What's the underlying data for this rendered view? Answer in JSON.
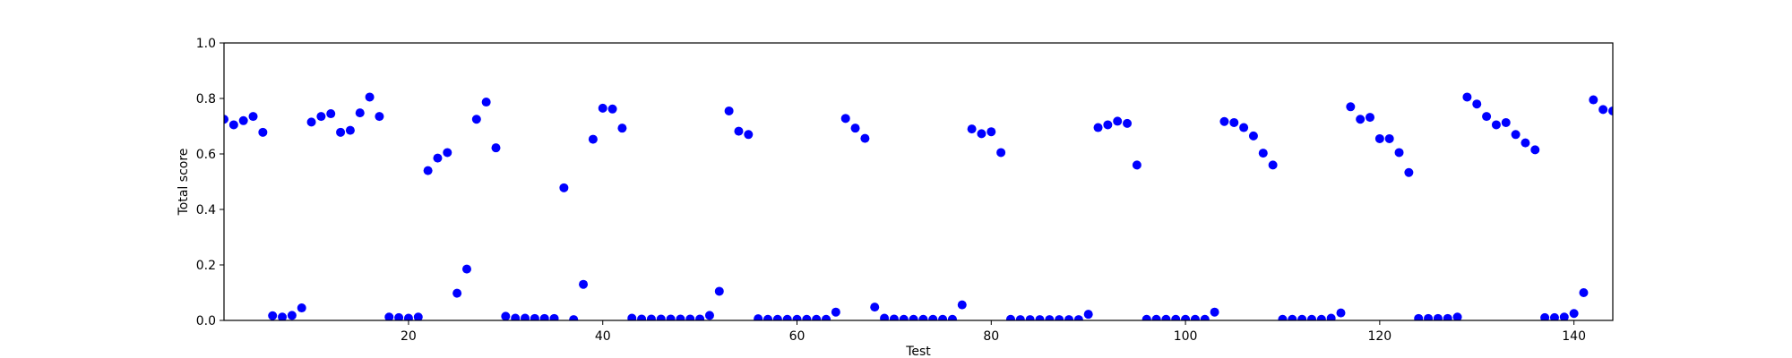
{
  "chart_data": {
    "type": "scatter",
    "title": "",
    "xlabel": "Test",
    "ylabel": "Total score",
    "xlim": [
      1,
      144
    ],
    "ylim": [
      0.0,
      1.0
    ],
    "x_ticks": [
      20,
      40,
      60,
      80,
      100,
      120,
      140
    ],
    "x_tick_labels": [
      "20",
      "40",
      "60",
      "80",
      "100",
      "120",
      "140"
    ],
    "y_ticks": [
      0.0,
      0.2,
      0.4,
      0.6,
      0.8,
      1.0
    ],
    "y_tick_labels": [
      "0.0",
      "0.2",
      "0.4",
      "0.6",
      "0.8",
      "1.0"
    ],
    "grid": false,
    "marker_color": "#0000ff",
    "points": [
      [
        1,
        0.725
      ],
      [
        2,
        0.705
      ],
      [
        3,
        0.72
      ],
      [
        4,
        0.735
      ],
      [
        5,
        0.678
      ],
      [
        6,
        0.017
      ],
      [
        7,
        0.012
      ],
      [
        8,
        0.018
      ],
      [
        9,
        0.045
      ],
      [
        10,
        0.715
      ],
      [
        11,
        0.735
      ],
      [
        12,
        0.745
      ],
      [
        13,
        0.678
      ],
      [
        14,
        0.685
      ],
      [
        15,
        0.748
      ],
      [
        16,
        0.805
      ],
      [
        17,
        0.735
      ],
      [
        18,
        0.012
      ],
      [
        19,
        0.01
      ],
      [
        20,
        0.008
      ],
      [
        21,
        0.012
      ],
      [
        22,
        0.54
      ],
      [
        23,
        0.585
      ],
      [
        24,
        0.605
      ],
      [
        25,
        0.098
      ],
      [
        26,
        0.185
      ],
      [
        27,
        0.725
      ],
      [
        28,
        0.787
      ],
      [
        29,
        0.622
      ],
      [
        30,
        0.015
      ],
      [
        31,
        0.008
      ],
      [
        32,
        0.008
      ],
      [
        33,
        0.007
      ],
      [
        34,
        0.007
      ],
      [
        35,
        0.007
      ],
      [
        36,
        0.478
      ],
      [
        37,
        0.003
      ],
      [
        38,
        0.13
      ],
      [
        39,
        0.653
      ],
      [
        40,
        0.765
      ],
      [
        41,
        0.762
      ],
      [
        42,
        0.693
      ],
      [
        43,
        0.008
      ],
      [
        44,
        0.005
      ],
      [
        45,
        0.005
      ],
      [
        46,
        0.005
      ],
      [
        47,
        0.005
      ],
      [
        48,
        0.005
      ],
      [
        49,
        0.005
      ],
      [
        50,
        0.005
      ],
      [
        51,
        0.018
      ],
      [
        52,
        0.105
      ],
      [
        53,
        0.755
      ],
      [
        54,
        0.682
      ],
      [
        55,
        0.67
      ],
      [
        56,
        0.006
      ],
      [
        57,
        0.004
      ],
      [
        58,
        0.004
      ],
      [
        59,
        0.004
      ],
      [
        60,
        0.004
      ],
      [
        61,
        0.004
      ],
      [
        62,
        0.004
      ],
      [
        63,
        0.004
      ],
      [
        64,
        0.03
      ],
      [
        65,
        0.728
      ],
      [
        66,
        0.693
      ],
      [
        67,
        0.656
      ],
      [
        68,
        0.048
      ],
      [
        69,
        0.008
      ],
      [
        70,
        0.005
      ],
      [
        71,
        0.004
      ],
      [
        72,
        0.004
      ],
      [
        73,
        0.004
      ],
      [
        74,
        0.004
      ],
      [
        75,
        0.004
      ],
      [
        76,
        0.004
      ],
      [
        77,
        0.056
      ],
      [
        78,
        0.69
      ],
      [
        79,
        0.673
      ],
      [
        80,
        0.68
      ],
      [
        81,
        0.605
      ],
      [
        82,
        0.004
      ],
      [
        83,
        0.003
      ],
      [
        84,
        0.003
      ],
      [
        85,
        0.003
      ],
      [
        86,
        0.003
      ],
      [
        87,
        0.003
      ],
      [
        88,
        0.003
      ],
      [
        89,
        0.003
      ],
      [
        90,
        0.022
      ],
      [
        91,
        0.695
      ],
      [
        92,
        0.705
      ],
      [
        93,
        0.718
      ],
      [
        94,
        0.71
      ],
      [
        95,
        0.56
      ],
      [
        96,
        0.004
      ],
      [
        97,
        0.004
      ],
      [
        98,
        0.004
      ],
      [
        99,
        0.004
      ],
      [
        100,
        0.004
      ],
      [
        101,
        0.004
      ],
      [
        102,
        0.004
      ],
      [
        103,
        0.03
      ],
      [
        104,
        0.717
      ],
      [
        105,
        0.713
      ],
      [
        106,
        0.695
      ],
      [
        107,
        0.665
      ],
      [
        108,
        0.603
      ],
      [
        109,
        0.56
      ],
      [
        110,
        0.004
      ],
      [
        111,
        0.004
      ],
      [
        112,
        0.004
      ],
      [
        113,
        0.004
      ],
      [
        114,
        0.004
      ],
      [
        115,
        0.008
      ],
      [
        116,
        0.027
      ],
      [
        117,
        0.77
      ],
      [
        118,
        0.725
      ],
      [
        119,
        0.732
      ],
      [
        120,
        0.655
      ],
      [
        121,
        0.655
      ],
      [
        122,
        0.605
      ],
      [
        123,
        0.533
      ],
      [
        124,
        0.007
      ],
      [
        125,
        0.007
      ],
      [
        126,
        0.007
      ],
      [
        127,
        0.007
      ],
      [
        128,
        0.012
      ],
      [
        129,
        0.805
      ],
      [
        130,
        0.78
      ],
      [
        131,
        0.735
      ],
      [
        132,
        0.705
      ],
      [
        133,
        0.713
      ],
      [
        134,
        0.67
      ],
      [
        135,
        0.64
      ],
      [
        136,
        0.615
      ],
      [
        137,
        0.01
      ],
      [
        138,
        0.01
      ],
      [
        139,
        0.012
      ],
      [
        140,
        0.025
      ],
      [
        141,
        0.1
      ],
      [
        142,
        0.795
      ],
      [
        143,
        0.76
      ],
      [
        144,
        0.755
      ]
    ]
  }
}
